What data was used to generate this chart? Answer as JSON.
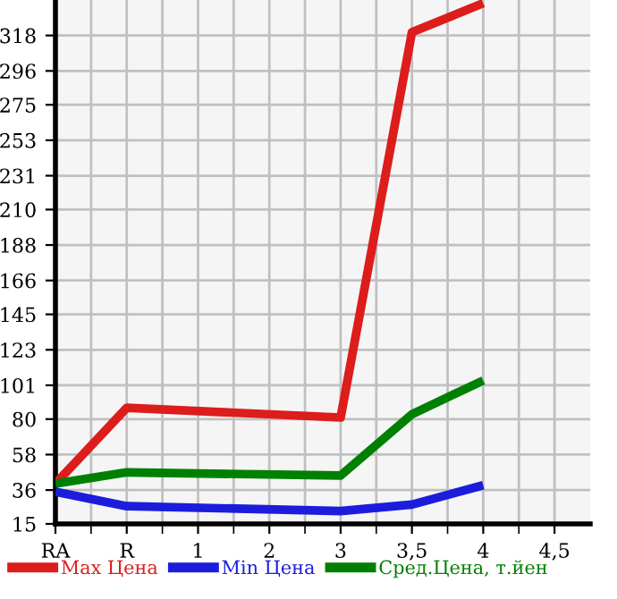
{
  "chart_data": {
    "type": "line",
    "categories": [
      "RA",
      "R",
      "1",
      "2",
      "3",
      "3,5",
      "4",
      "4,5"
    ],
    "series": [
      {
        "name": "Max Цена",
        "color": "#dd1c1c",
        "values": [
          40,
          87,
          null,
          null,
          81,
          320,
          338,
          null
        ]
      },
      {
        "name": "Min Цена",
        "color": "#1c1cdd",
        "values": [
          35,
          26,
          null,
          null,
          23,
          27,
          39,
          null
        ]
      },
      {
        "name": "Сред.Цена, т.йен",
        "color": "#008000",
        "values": [
          40,
          47,
          null,
          null,
          45,
          83,
          104,
          null
        ]
      }
    ],
    "ylim": [
      15,
      340
    ],
    "yticks": [
      15,
      36,
      58,
      80,
      101,
      123,
      145,
      166,
      188,
      210,
      231,
      253,
      275,
      296,
      318
    ],
    "grid": true,
    "legend": "bottom",
    "marker": "none",
    "line_style": "solid"
  }
}
